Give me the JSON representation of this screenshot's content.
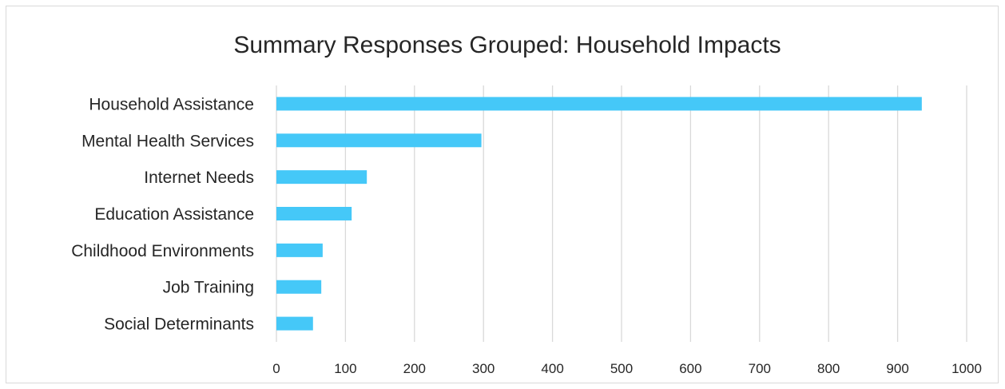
{
  "chart_data": {
    "type": "bar",
    "orientation": "horizontal",
    "title": "Summary Responses Grouped: Household Impacts",
    "xlabel": "",
    "ylabel": "",
    "categories": [
      "Household Assistance",
      "Mental Health Services",
      "Internet Needs",
      "Education Assistance",
      "Childhood Environments",
      "Job Training",
      "Social Determinants"
    ],
    "values": [
      935,
      297,
      131,
      109,
      67,
      65,
      53
    ],
    "xlim": [
      0,
      1000
    ],
    "xticks": [
      0,
      100,
      200,
      300,
      400,
      500,
      600,
      700,
      800,
      900,
      1000
    ],
    "grid": "vertical",
    "legend": "none",
    "bar_color": "#45C8F8"
  }
}
